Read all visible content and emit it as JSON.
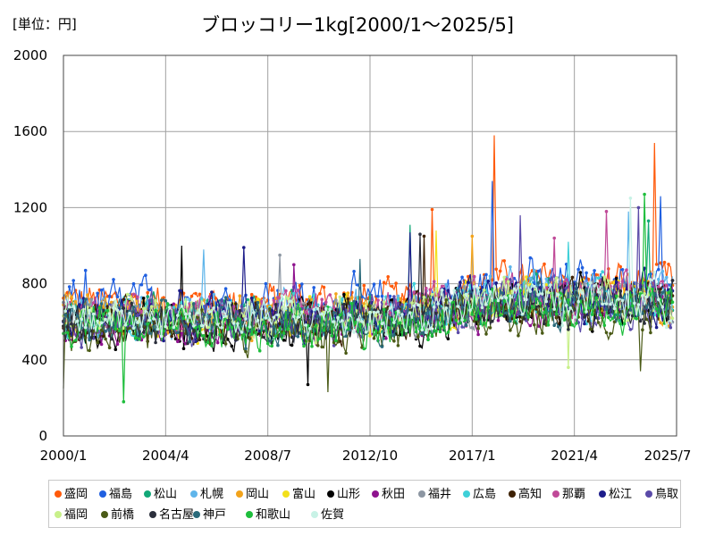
{
  "chart_data": {
    "type": "line",
    "title": "ブロッコリー1kg[2000/1～2025/5]",
    "unit_label": "[単位：円]",
    "xlabel": "",
    "ylabel": "",
    "x_ticks": [
      "2000/1",
      "2004/4",
      "2008/7",
      "2012/10",
      "2017/1",
      "2021/4",
      "2025/7"
    ],
    "y_ticks": [
      0,
      400,
      800,
      1200,
      1600,
      2000
    ],
    "ylim": [
      0,
      2000
    ],
    "xlim": [
      "2000/1",
      "2025/7"
    ],
    "grid": true,
    "legend_position": "bottom",
    "series": [
      {
        "name": "盛岡",
        "color": "#ff5a0a",
        "level": 700,
        "amp": 210,
        "highlights": [
          [
            2017.9,
            1580
          ],
          [
            2024.6,
            1540
          ],
          [
            2015.3,
            1190
          ]
        ]
      },
      {
        "name": "福島",
        "color": "#1f5fe0",
        "level": 690,
        "amp": 240,
        "highlights": [
          [
            2017.8,
            1340
          ],
          [
            2024.8,
            1260
          ],
          [
            2000.9,
            870
          ]
        ]
      },
      {
        "name": "松山",
        "color": "#12a878",
        "level": 620,
        "amp": 210,
        "highlights": [
          [
            2014.4,
            1110
          ],
          [
            2024.3,
            1130
          ]
        ]
      },
      {
        "name": "札幌",
        "color": "#5fb5ea",
        "level": 640,
        "amp": 220,
        "highlights": [
          [
            2005.8,
            980
          ],
          [
            2023.5,
            1180
          ]
        ]
      },
      {
        "name": "岡山",
        "color": "#f2a31b",
        "level": 630,
        "amp": 200,
        "highlights": [
          [
            2017.0,
            1050
          ]
        ]
      },
      {
        "name": "富山",
        "color": "#f2e01b",
        "level": 620,
        "amp": 200,
        "highlights": [
          [
            2015.5,
            1080
          ]
        ]
      },
      {
        "name": "山形",
        "color": "#000000",
        "level": 600,
        "amp": 230,
        "highlights": [
          [
            2010.2,
            270
          ],
          [
            2004.9,
            1000
          ]
        ]
      },
      {
        "name": "秋田",
        "color": "#8e138e",
        "level": 590,
        "amp": 200,
        "highlights": [
          [
            2009.6,
            900
          ]
        ]
      },
      {
        "name": "福井",
        "color": "#8c96a2",
        "level": 620,
        "amp": 210,
        "highlights": [
          [
            2009.0,
            950
          ]
        ]
      },
      {
        "name": "広島",
        "color": "#3fd0d8",
        "level": 630,
        "amp": 200,
        "highlights": [
          [
            2021.0,
            1020
          ]
        ]
      },
      {
        "name": "高知",
        "color": "#3e2206",
        "level": 610,
        "amp": 220,
        "highlights": [
          [
            2015.0,
            1050
          ]
        ]
      },
      {
        "name": "那覇",
        "color": "#c04a98",
        "level": 650,
        "amp": 210,
        "highlights": [
          [
            2022.6,
            1180
          ],
          [
            2020.4,
            1040
          ]
        ]
      },
      {
        "name": "松江",
        "color": "#1c1c8a",
        "level": 620,
        "amp": 220,
        "highlights": [
          [
            2007.5,
            990
          ],
          [
            2014.4,
            1070
          ]
        ]
      },
      {
        "name": "鳥取",
        "color": "#5a4aa8",
        "level": 610,
        "amp": 210,
        "highlights": [
          [
            2019.0,
            1160
          ],
          [
            2023.9,
            1200
          ]
        ]
      },
      {
        "name": "福岡",
        "color": "#c8f08a",
        "level": 620,
        "amp": 200,
        "highlights": [
          [
            2021.0,
            360
          ]
        ]
      },
      {
        "name": "前橋",
        "color": "#4a5a16",
        "level": 560,
        "amp": 210,
        "highlights": [
          [
            2000.0,
            250
          ],
          [
            2011.0,
            230
          ],
          [
            2024.0,
            340
          ]
        ]
      },
      {
        "name": "名古屋",
        "color": "#2b2f3c",
        "level": 600,
        "amp": 210,
        "highlights": [
          [
            2014.8,
            1060
          ]
        ]
      },
      {
        "name": "神戸",
        "color": "#2a6a7a",
        "level": 600,
        "amp": 210,
        "highlights": [
          [
            2012.3,
            930
          ]
        ]
      },
      {
        "name": "和歌山",
        "color": "#1ebe3c",
        "level": 580,
        "amp": 220,
        "highlights": [
          [
            2002.5,
            180
          ],
          [
            2024.2,
            1270
          ]
        ]
      },
      {
        "name": "佐賀",
        "color": "#c8f2e6",
        "level": 620,
        "amp": 200,
        "highlights": [
          [
            2023.6,
            1250
          ]
        ]
      }
    ]
  }
}
